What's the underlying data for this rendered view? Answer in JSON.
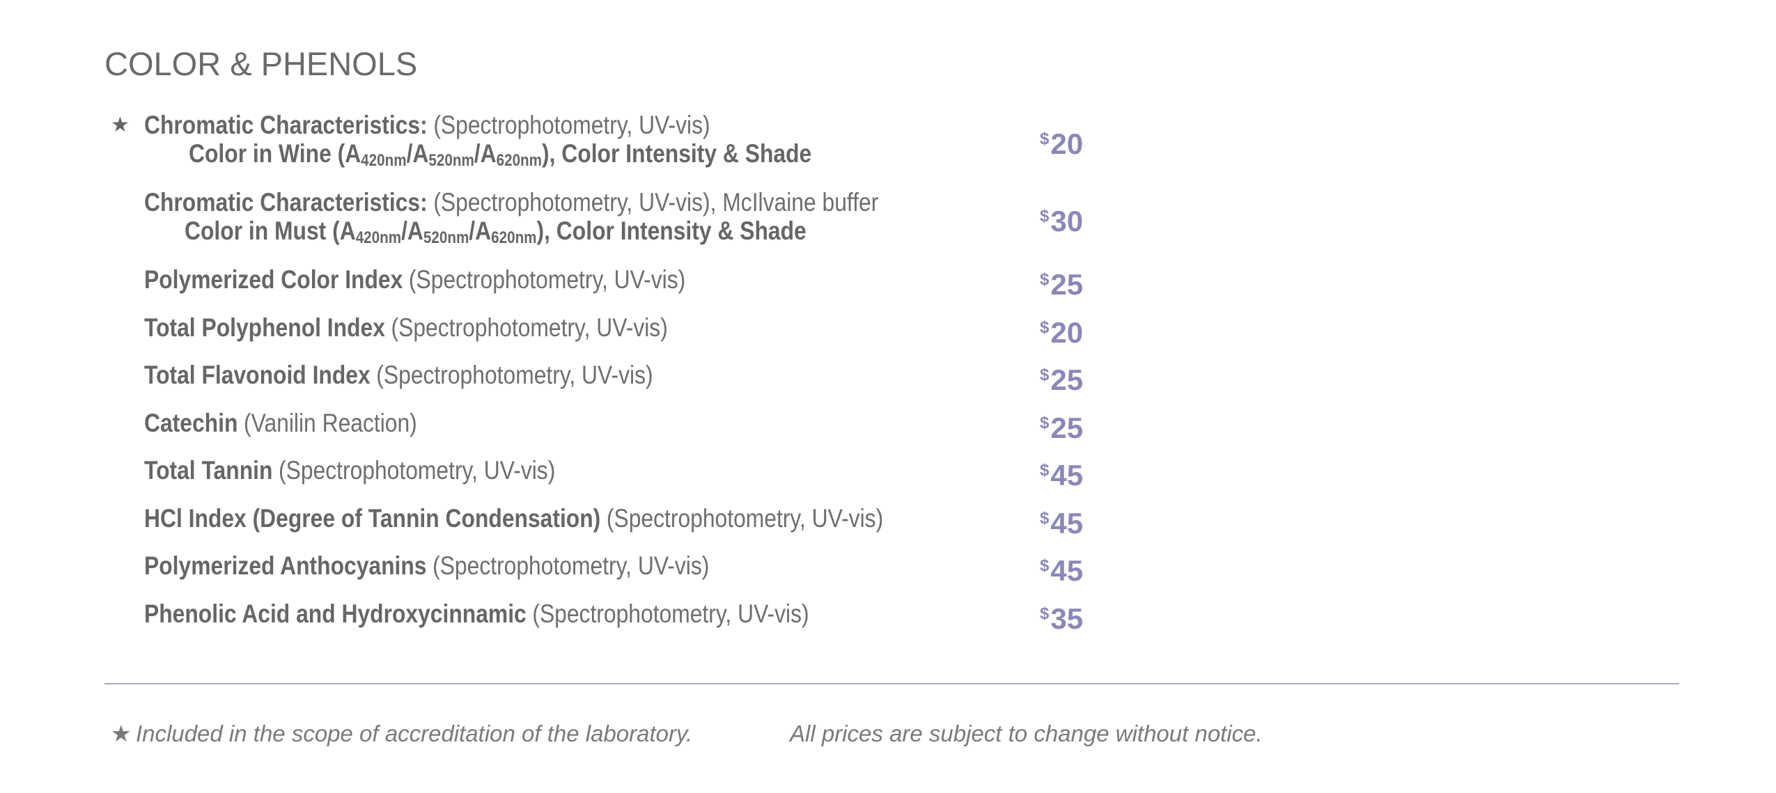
{
  "title": "COLOR & PHENOLS",
  "star": "★",
  "currency": "$",
  "items": [
    {
      "name": "Chromatic Characteristics:",
      "method": "(Spectrophotometry, UV-vis)",
      "accredited": true,
      "detail_parts": [
        "Color in Wine (A",
        "420nm",
        "/A",
        "520nm",
        "/A",
        "620nm",
        "), Color Intensity & Shade"
      ],
      "price": 20
    },
    {
      "name": "Chromatic Characteristics:",
      "method": "(Spectrophotometry, UV-vis), McIlvaine buffer",
      "accredited": false,
      "detail_parts": [
        "Color in Must (A",
        "420nm",
        "/A",
        "520nm",
        "/A",
        "620nm",
        "), Color Intensity & Shade"
      ],
      "price": 30
    },
    {
      "name": "Polymerized Color Index",
      "method": "(Spectrophotometry, UV-vis)",
      "accredited": false,
      "price": 25
    },
    {
      "name": "Total Polyphenol Index",
      "method": "(Spectrophotometry, UV-vis)",
      "accredited": false,
      "price": 20
    },
    {
      "name": "Total Flavonoid Index",
      "method": "(Spectrophotometry, UV-vis)",
      "accredited": false,
      "price": 25
    },
    {
      "name": "Catechin",
      "method": "(Vanilin Reaction)",
      "accredited": false,
      "price": 25
    },
    {
      "name": "Total Tannin",
      "method": "(Spectrophotometry, UV-vis)",
      "accredited": false,
      "price": 45
    },
    {
      "name": "HCl Index (Degree of Tannin Condensation)",
      "method": "(Spectrophotometry, UV-vis)",
      "accredited": false,
      "price": 45
    },
    {
      "name": "Polymerized Anthocyanins",
      "method": "(Spectrophotometry, UV-vis)",
      "accredited": false,
      "price": 45
    },
    {
      "name": "Phenolic Acid and Hydroxycinnamic",
      "method": "(Spectrophotometry, UV-vis)",
      "accredited": false,
      "price": 35
    }
  ],
  "footer": {
    "note": "Included in the scope of accreditation of the laboratory.",
    "disclaimer": "All prices are subject to change without notice."
  }
}
